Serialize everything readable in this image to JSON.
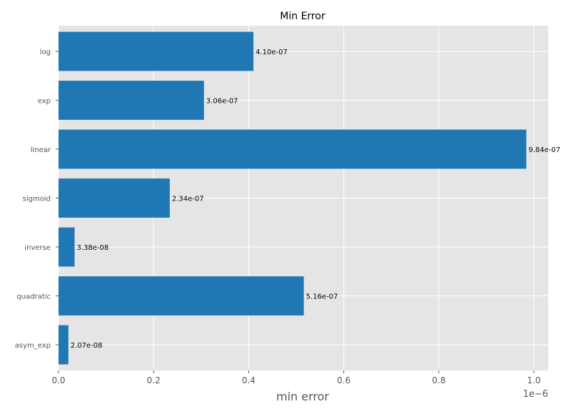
{
  "chart_data": {
    "type": "bar",
    "orientation": "horizontal",
    "title": "Min Error",
    "xlabel": "min error",
    "ylabel": "",
    "x_offset_label": "1e−6",
    "xlim": [
      0,
      1.03
    ],
    "xticks": [
      0.0,
      0.2,
      0.4,
      0.6,
      0.8,
      1.0
    ],
    "xtick_labels": [
      "0.0",
      "0.2",
      "0.4",
      "0.6",
      "0.8",
      "1.0"
    ],
    "grid": true,
    "categories": [
      "log",
      "exp",
      "linear",
      "sigmoid",
      "inverse",
      "quadratic",
      "asym_exp"
    ],
    "values": [
      0.41,
      0.306,
      0.984,
      0.234,
      0.0338,
      0.516,
      0.0207
    ],
    "value_labels": [
      "4.10e-07",
      "3.06e-07",
      "9.84e-07",
      "2.34e-07",
      "3.38e-08",
      "5.16e-07",
      "2.07e-08"
    ],
    "colors": {
      "bar": "#1f77b4",
      "plot_bg": "#e5e5e5",
      "grid": "#ffffff"
    }
  }
}
